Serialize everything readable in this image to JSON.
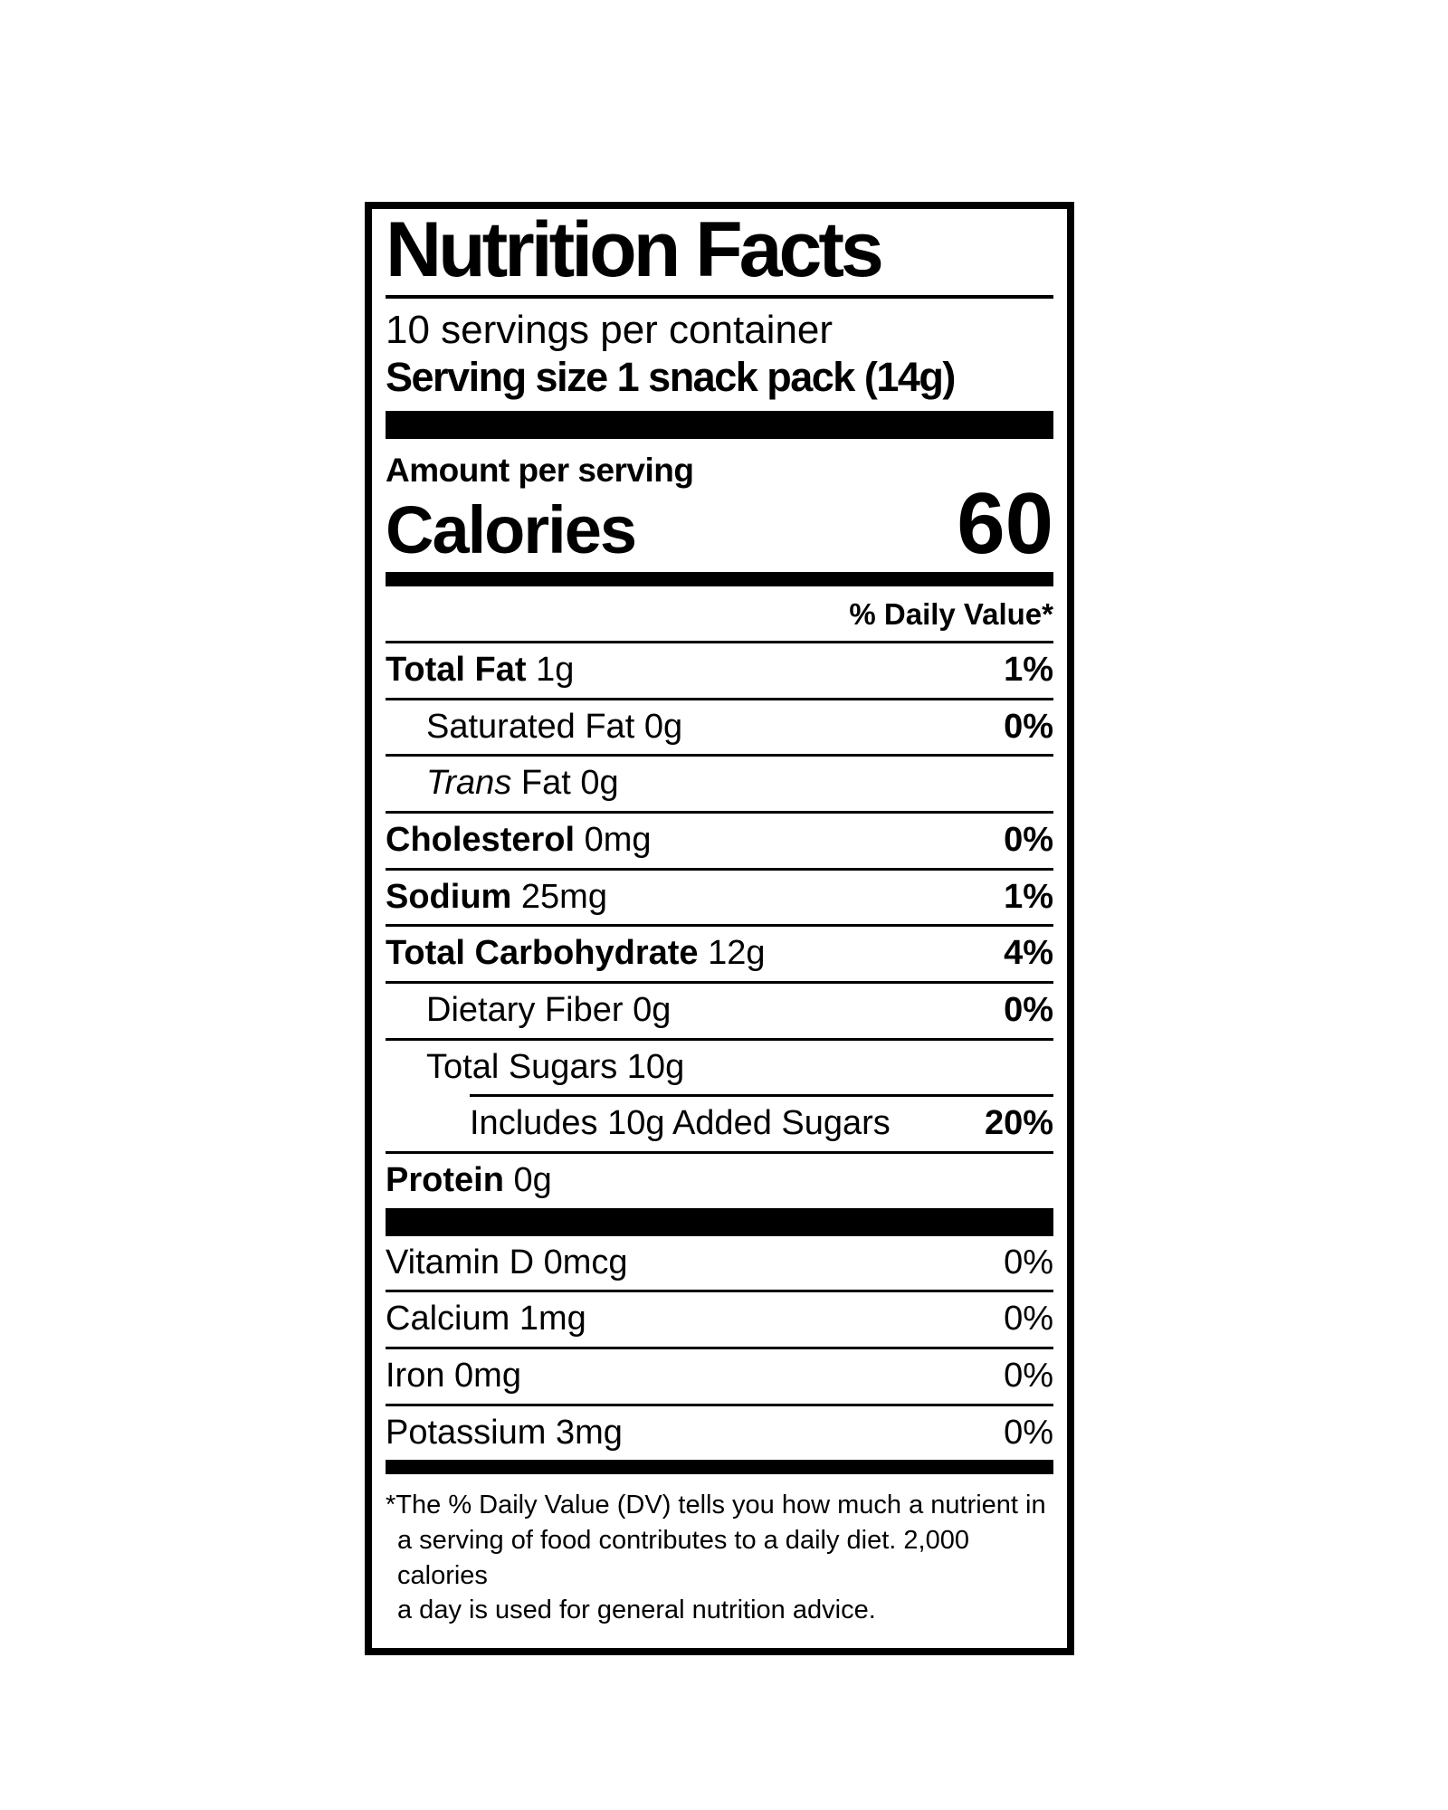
{
  "colors": {
    "text": "#000000",
    "background": "#ffffff"
  },
  "label": {
    "title": "Nutrition Facts",
    "servings_per_container": "10 servings per container",
    "serving_size_label": "Serving size",
    "serving_size_value": "1 snack pack (14g)",
    "amount_per_serving": "Amount per serving",
    "calories_label": "Calories",
    "calories_value": "60",
    "daily_value_header": "% Daily Value*",
    "nutrients": [
      {
        "name": "Total Fat",
        "amount": "1g",
        "dv": "1%"
      },
      {
        "name": "Saturated Fat",
        "amount": "0g",
        "dv": "0%"
      },
      {
        "name_italic": "Trans",
        "name": "Fat",
        "amount": "0g",
        "dv": ""
      },
      {
        "name": "Cholesterol",
        "amount": "0mg",
        "dv": "0%"
      },
      {
        "name": "Sodium",
        "amount": "25mg",
        "dv": "1%"
      },
      {
        "name": "Total Carbohydrate",
        "amount": "12g",
        "dv": "4%"
      },
      {
        "name": "Dietary Fiber",
        "amount": "0g",
        "dv": "0%"
      },
      {
        "name": "Total Sugars",
        "amount": "10g",
        "dv": ""
      },
      {
        "name": "Includes 10g Added Sugars",
        "amount": "",
        "dv": "20%"
      },
      {
        "name": "Protein",
        "amount": "0g",
        "dv": ""
      }
    ],
    "vitamins": [
      {
        "name": "Vitamin D",
        "amount": "0mcg",
        "dv": "0%"
      },
      {
        "name": "Calcium",
        "amount": "1mg",
        "dv": "0%"
      },
      {
        "name": "Iron",
        "amount": "0mg",
        "dv": "0%"
      },
      {
        "name": "Potassium",
        "amount": "3mg",
        "dv": "0%"
      }
    ],
    "footnote_lines": [
      "*The % Daily Value (DV) tells you how much a nutrient in",
      "a serving of food contributes to a daily diet. 2,000 calories",
      "a day is used for general nutrition advice."
    ]
  }
}
